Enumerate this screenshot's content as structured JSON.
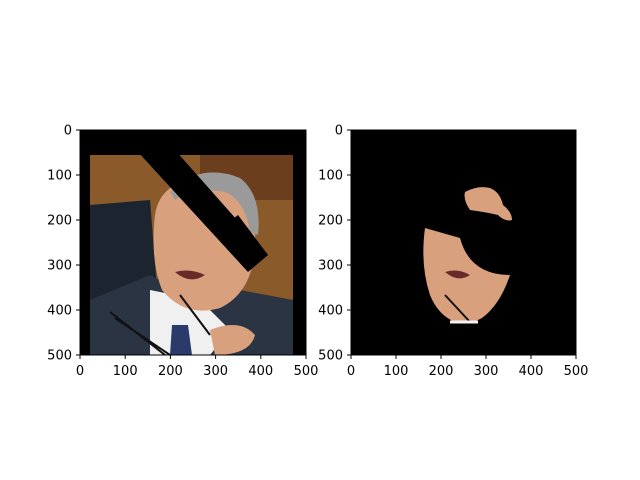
{
  "chart_data": [
    {
      "type": "image",
      "title": "",
      "xlabel": "",
      "ylabel": "",
      "xlim": [
        0,
        500
      ],
      "ylim": [
        500,
        0
      ],
      "xticks": [
        0,
        100,
        200,
        300,
        400,
        500
      ],
      "yticks": [
        0,
        100,
        200,
        300,
        400,
        500
      ],
      "content": "photo of man in suit with glasses and tie, partially covered by black occluding strokes"
    },
    {
      "type": "image",
      "title": "",
      "xlabel": "",
      "ylabel": "",
      "xlim": [
        0,
        500
      ],
      "ylim": [
        500,
        0
      ],
      "xticks": [
        0,
        100,
        200,
        300,
        400,
        500
      ],
      "yticks": [
        0,
        100,
        200,
        300,
        400,
        500
      ],
      "content": "segmented face skin region on black background"
    }
  ],
  "colors": {
    "background": "#ffffff",
    "frame": "#000000",
    "wall": "#8a5a2a",
    "chair": "#1c2430",
    "suit": "#2a3442",
    "shirt": "#f0f0f0",
    "tie": "#2a3a6a",
    "skin": "#d9a07e",
    "hair": "#9a9a9a"
  }
}
